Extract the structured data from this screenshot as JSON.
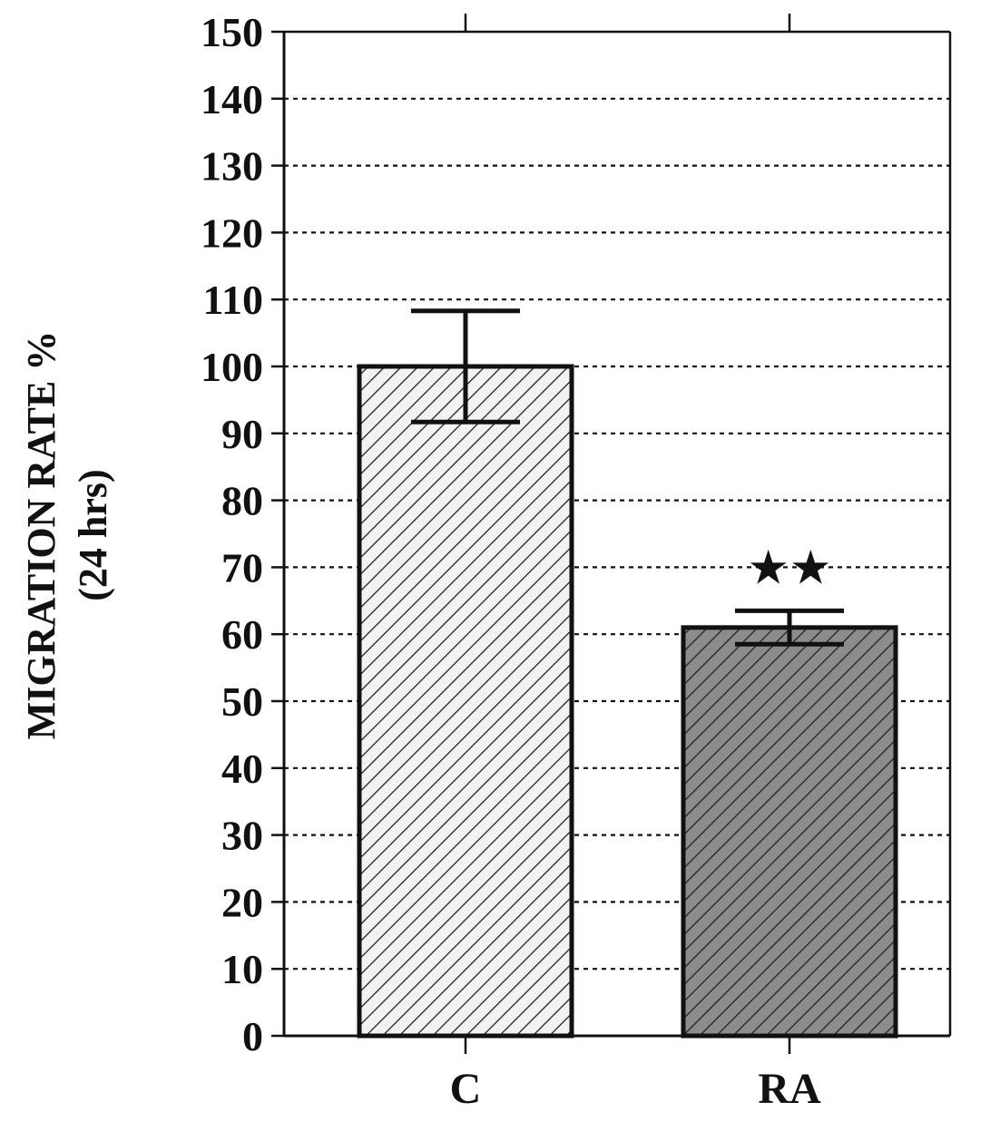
{
  "chart_data": {
    "type": "bar",
    "categories": [
      "C",
      "RA"
    ],
    "values": [
      100,
      61
    ],
    "errors": [
      8.3,
      2.5
    ],
    "ylabel_line1": "MIGRATION RATE %",
    "ylabel_line2": "(24 hrs)",
    "ylim": [
      0,
      150
    ],
    "yticks": [
      0,
      10,
      20,
      30,
      40,
      50,
      60,
      70,
      80,
      90,
      100,
      110,
      120,
      130,
      140,
      150
    ],
    "grid": true,
    "bar_colors": [
      "#f2f2f2",
      "#8a8d8a"
    ],
    "annotations": [
      {
        "category": "RA",
        "text": "★★"
      }
    ]
  }
}
